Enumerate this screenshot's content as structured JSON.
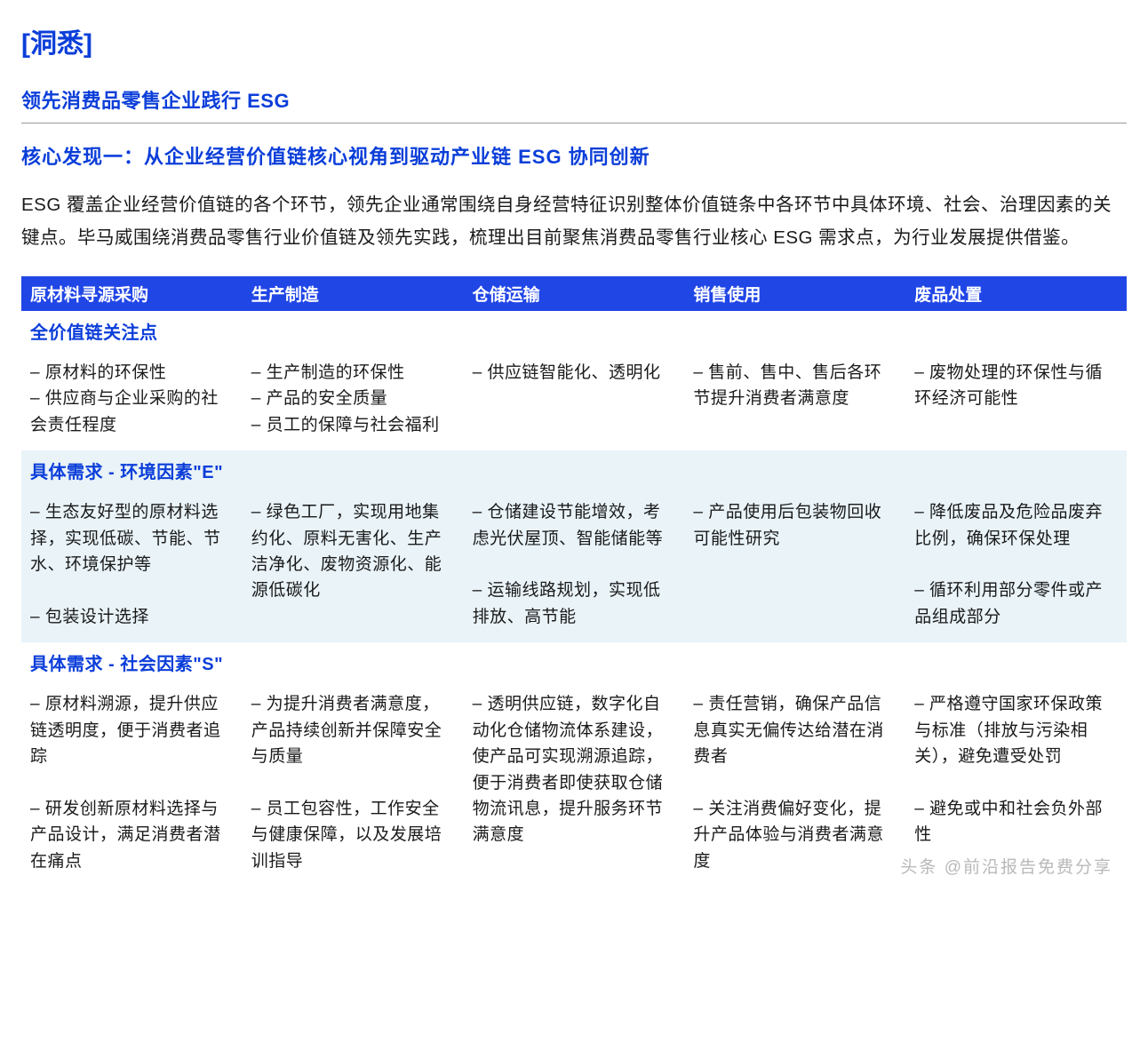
{
  "header": {
    "bracket_open": "[",
    "title": "洞悉",
    "bracket_close": "]"
  },
  "sub_title": "领先消费品零售企业践行 ESG",
  "finding_title": "核心发现一：从企业经营价值链核心视角到驱动产业链 ESG 协同创新",
  "body_text": "ESG 覆盖企业经营价值链的各个环节，领先企业通常围绕自身经营特征识别整体价值链条中各环节中具体环境、社会、治理因素的关键点。毕马威围绕消费品零售行业价值链及领先实践，梳理出目前聚焦消费品零售行业核心 ESG 需求点，为行业发展提供借鉴。",
  "columns": [
    "原材料寻源采购",
    "生产制造",
    "仓储运输",
    "销售使用",
    "废品处置"
  ],
  "sections": [
    {
      "label": "全价值链关注点",
      "alt": false,
      "cells": [
        "– 原材料的环保性\n– 供应商与企业采购的社会责任程度",
        "– 生产制造的环保性\n– 产品的安全质量\n– 员工的保障与社会福利",
        "– 供应链智能化、透明化",
        "– 售前、售中、售后各环节提升消费者满意度",
        "– 废物处理的环保性与循环经济可能性"
      ]
    },
    {
      "label": "具体需求 - 环境因素\"E\"",
      "alt": true,
      "cells": [
        "– 生态友好型的原材料选择，实现低碳、节能、节水、环境保护等\n\n– 包装设计选择",
        "– 绿色工厂，实现用地集约化、原料无害化、生产洁净化、废物资源化、能源低碳化",
        "– 仓储建设节能增效，考虑光伏屋顶、智能储能等\n\n– 运输线路规划，实现低排放、高节能",
        "– 产品使用后包装物回收可能性研究",
        "– 降低废品及危险品废弃比例，确保环保处理\n\n– 循环利用部分零件或产品组成部分"
      ]
    },
    {
      "label": "具体需求 - 社会因素\"S\"",
      "alt": false,
      "cells": [
        "– 原材料溯源，提升供应链透明度，便于消费者追踪\n\n– 研发创新原材料选择与产品设计，满足消费者潜在痛点",
        "– 为提升消费者满意度，产品持续创新并保障安全与质量\n\n– 员工包容性，工作安全与健康保障，以及发展培训指导",
        "– 透明供应链，数字化自动化仓储物流体系建设，使产品可实现溯源追踪，便于消费者即使获取仓储物流讯息，提升服务环节满意度",
        "– 责任营销，确保产品信息真实无偏传达给潜在消费者\n\n– 关注消费偏好变化，提升产品体验与消费者满意度",
        "– 严格遵守国家环保政策与标准（排放与污染相关），避免遭受处罚\n\n– 避免或中和社会负外部性"
      ]
    }
  ],
  "watermark": "头条 @前沿报告免费分享",
  "colors": {
    "brand_blue": "#0b3ed9",
    "header_bg": "#2146e6",
    "alt_row_bg": "#e9f3f8",
    "text": "#1a1a1a",
    "divider": "#999999"
  }
}
